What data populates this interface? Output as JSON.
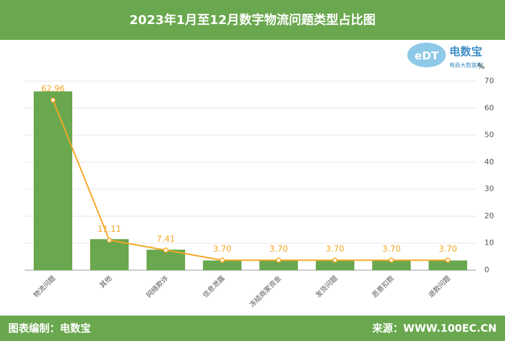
{
  "header": {
    "title": "2023年1月至12月数字物流问题类型占比图"
  },
  "logo": {
    "name": "电数宝",
    "sub": "电商大数据库"
  },
  "footer": {
    "left": "图表编制：电数宝",
    "right": "来源：WWW.100EC.CN"
  },
  "chart_data": {
    "type": "combo",
    "unit": "%",
    "categories": [
      "物流问题",
      "其他",
      "网络欺诈",
      "信息泄露",
      "冻结商家资金",
      "发货问题",
      "恶意扣款",
      "退款问题"
    ],
    "series": [
      {
        "type": "bar",
        "color": "#6aa84f",
        "values": [
          66.2,
          11.5,
          7.6,
          3.6,
          3.6,
          3.6,
          3.6,
          3.6
        ]
      },
      {
        "type": "line",
        "color": "#f5a623",
        "values": [
          62.96,
          11.11,
          7.41,
          3.7,
          3.7,
          3.7,
          3.7,
          3.7
        ],
        "value_labels": [
          "62.96",
          "11.11",
          "7.41",
          "3.70",
          "3.70",
          "3.70",
          "3.70",
          "3.70"
        ]
      }
    ],
    "ylim": [
      0,
      70
    ],
    "yticks": [
      0,
      10,
      20,
      30,
      40,
      50,
      60,
      70
    ],
    "grid": true
  }
}
